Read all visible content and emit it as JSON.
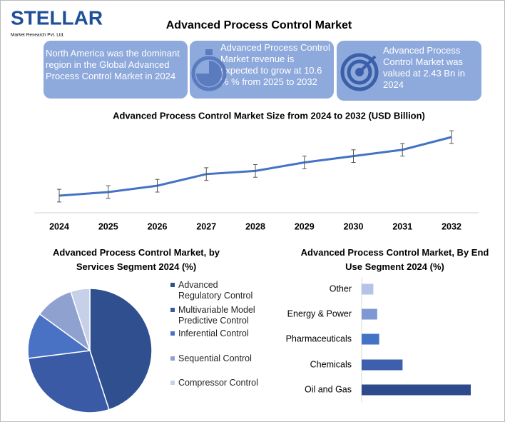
{
  "header": {
    "logo": "STELLAR",
    "logo_sub": "Market Research Pvt. Ltd.",
    "title": "Advanced Process Control Market"
  },
  "info_boxes": [
    "North America was the dominant region in the Global Advanced Process Control Market in 2024",
    "Advanced Process Control Market revenue is expected to grow at 10.6 % % from 2025 to 2032",
    "Advanced Process Control Market was valued at 2.43 Bn in 2024"
  ],
  "chart_data": [
    {
      "type": "line",
      "title": "Advanced Process Control Market Size from 2024 to 2032 (USD Billion)",
      "categories": [
        "2024",
        "2025",
        "2026",
        "2027",
        "2028",
        "2029",
        "2030",
        "2031",
        "2032"
      ],
      "values": [
        2.43,
        2.6,
        2.9,
        3.45,
        3.6,
        4.0,
        4.3,
        4.6,
        5.2
      ],
      "errors": [
        0.3,
        0.3,
        0.3,
        0.3,
        0.3,
        0.3,
        0.3,
        0.3,
        0.3
      ],
      "color": "#4472c4"
    },
    {
      "type": "pie",
      "title": "Advanced Process Control  Market, by Services Segment 2024 (%)",
      "categories": [
        "Advanced Regulatory Control",
        "Multivariable Model Predictive Control",
        "Inferential Control",
        "Sequential Control",
        "Compressor Control"
      ],
      "values": [
        45,
        28,
        12,
        10,
        5
      ],
      "colors": [
        "#2f4f8f",
        "#3a5aa6",
        "#4a72c4",
        "#8fa2cf",
        "#c6d0e9"
      ]
    },
    {
      "type": "bar",
      "orientation": "horizontal",
      "title": "Advanced Process Control  Market, By End Use Segment 2024 (%)",
      "categories": [
        "Other",
        "Energy & Power",
        "Pharmaceuticals",
        "Chemicals",
        "Oil and Gas"
      ],
      "values": [
        6,
        8,
        9,
        21,
        56
      ],
      "colors": [
        "#b4c3e7",
        "#7f97d2",
        "#4472c4",
        "#3d5fae",
        "#2e4a8c"
      ]
    }
  ]
}
